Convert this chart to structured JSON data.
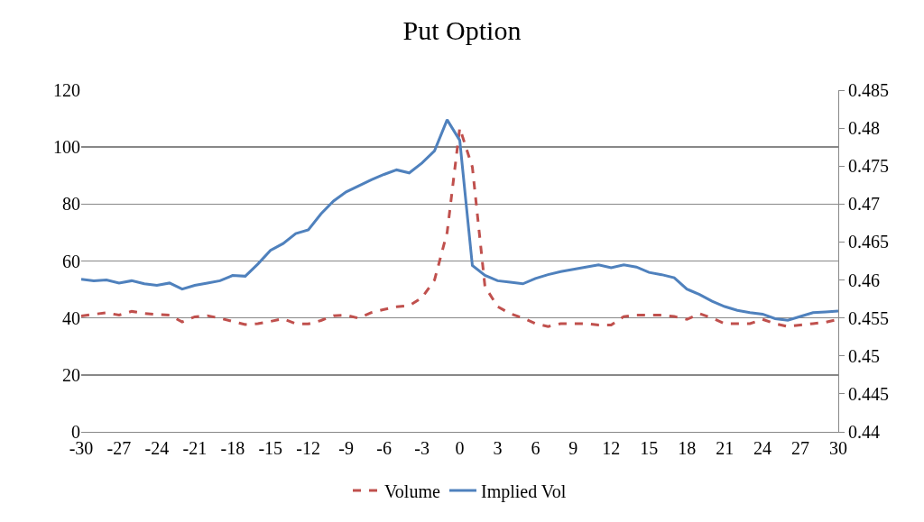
{
  "chart_data": {
    "type": "line",
    "title": "Put Option",
    "x": [
      -30,
      -29,
      -28,
      -27,
      -26,
      -25,
      -24,
      -23,
      -22,
      -21,
      -20,
      -19,
      -18,
      -17,
      -16,
      -15,
      -14,
      -13,
      -12,
      -11,
      -10,
      -9,
      -8,
      -7,
      -6,
      -5,
      -4,
      -3,
      -2,
      -1,
      0,
      1,
      2,
      3,
      4,
      5,
      6,
      7,
      8,
      9,
      10,
      11,
      12,
      13,
      14,
      15,
      16,
      17,
      18,
      19,
      20,
      21,
      22,
      23,
      24,
      25,
      26,
      27,
      28,
      29,
      30
    ],
    "series": [
      {
        "name": "Volume",
        "color": "#c0504d",
        "line_style": "dashed",
        "values": [
          40.7,
          41.3,
          41.8,
          41,
          42.3,
          41.6,
          41.2,
          41,
          38.6,
          40.4,
          40.8,
          39.9,
          38.8,
          37.7,
          38,
          38.8,
          39.7,
          38,
          37.9,
          39.1,
          40.8,
          41,
          39.9,
          41.9,
          43,
          43.9,
          44.3,
          47.1,
          53.3,
          70,
          106.7,
          93,
          51,
          44,
          41.5,
          40,
          38,
          37,
          38,
          38,
          38,
          37.5,
          37.5,
          40.5,
          41,
          41,
          41,
          40.5,
          39.5,
          41.5,
          40,
          38,
          38,
          38,
          39.5,
          38,
          37,
          37.5,
          38,
          38.5,
          39.5
        ]
      },
      {
        "name": "Implied Vol",
        "color": "#4f81bd",
        "axis": "y2",
        "line_style": "solid",
        "values": [
          0.4601,
          0.4599,
          0.46,
          0.4596,
          0.4599,
          0.4595,
          0.4593,
          0.4596,
          0.4588,
          0.4593,
          0.4596,
          0.4599,
          0.4606,
          0.4605,
          0.4621,
          0.4639,
          0.4648,
          0.4661,
          0.4666,
          0.4687,
          0.4704,
          0.4716,
          0.4724,
          0.4732,
          0.4739,
          0.4745,
          0.4741,
          0.4754,
          0.477,
          0.4811,
          0.4784,
          0.4619,
          0.4606,
          0.4599,
          0.4597,
          0.4595,
          0.4602,
          0.4607,
          0.4611,
          0.4614,
          0.4617,
          0.462,
          0.4616,
          0.462,
          0.4617,
          0.461,
          0.4607,
          0.4603,
          0.4588,
          0.4581,
          0.4572,
          0.4565,
          0.456,
          0.4557,
          0.4555,
          0.4549,
          0.4547,
          0.4552,
          0.4557,
          0.4558,
          0.4559
        ]
      }
    ],
    "xlim": [
      -30,
      30
    ],
    "xticks": [
      -30,
      -27,
      -24,
      -21,
      -18,
      -15,
      -12,
      -9,
      -6,
      -3,
      0,
      3,
      6,
      9,
      12,
      15,
      18,
      21,
      24,
      27,
      30
    ],
    "ylim": [
      0,
      120
    ],
    "yticks": [
      0,
      20,
      40,
      60,
      80,
      100,
      120
    ],
    "y2lim": [
      0.44,
      0.485
    ],
    "y2ticks": [
      0.44,
      0.445,
      0.45,
      0.455,
      0.46,
      0.465,
      0.47,
      0.475,
      0.48,
      0.485
    ],
    "grid": "y",
    "legend": "bottom",
    "marker": "none"
  }
}
